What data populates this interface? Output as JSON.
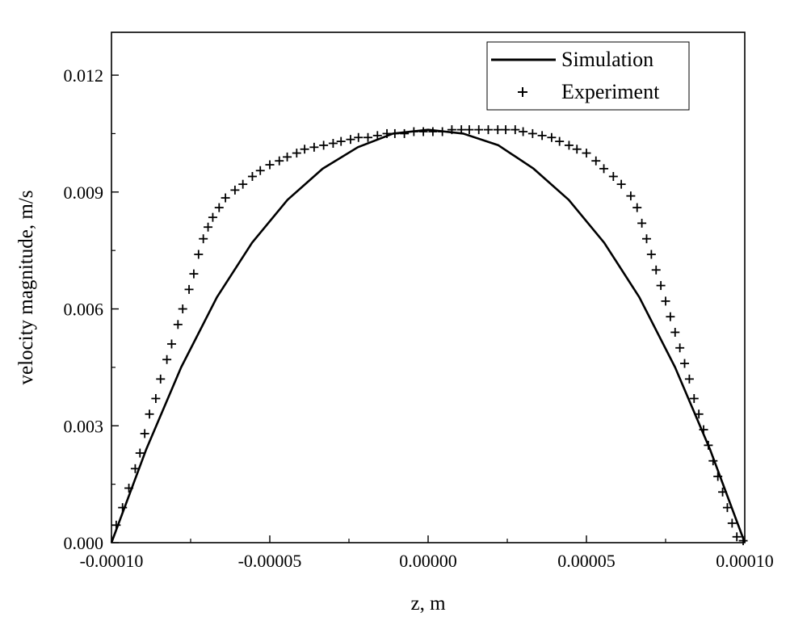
{
  "chart_data": {
    "type": "line",
    "title": "",
    "xlabel": "z, m",
    "ylabel": "velocity magnitude, m/s",
    "xlim": [
      -0.0001,
      0.0001
    ],
    "ylim": [
      0,
      0.0131
    ],
    "x_ticks": [
      -0.0001,
      -5e-05,
      0,
      5e-05,
      0.0001
    ],
    "x_tick_labels": [
      "-0.00010",
      "-0.00005",
      "0.00000",
      "0.00005",
      "0.00010"
    ],
    "y_ticks": [
      0,
      0.003,
      0.006,
      0.009,
      0.012
    ],
    "y_tick_labels": [
      "0.000",
      "0.003",
      "0.006",
      "0.009",
      "0.012"
    ],
    "grid": false,
    "legend_position": "top-right",
    "series": [
      {
        "name": "Simulation",
        "style": "solid-line",
        "color": "#000000",
        "x": [
          -0.0001,
          -8.9e-05,
          -7.8e-05,
          -6.67e-05,
          -5.56e-05,
          -4.44e-05,
          -3.33e-05,
          -2.22e-05,
          -1.11e-05,
          0,
          1.11e-05,
          2.22e-05,
          3.33e-05,
          4.44e-05,
          5.56e-05,
          6.67e-05,
          7.8e-05,
          8.9e-05,
          0.0001
        ],
        "y": [
          0,
          0.0024,
          0.0045,
          0.0063,
          0.0077,
          0.0088,
          0.0096,
          0.01015,
          0.0105,
          0.0106,
          0.0105,
          0.0102,
          0.0096,
          0.0088,
          0.0077,
          0.0063,
          0.0045,
          0.0024,
          0
        ]
      },
      {
        "name": "Experiment",
        "style": "plus-markers",
        "color": "#000000",
        "x": [
          -9.85e-05,
          -9.65e-05,
          -9.45e-05,
          -9.25e-05,
          -9.1e-05,
          -8.95e-05,
          -8.8e-05,
          -8.6e-05,
          -8.45e-05,
          -8.25e-05,
          -8.1e-05,
          -7.9e-05,
          -7.75e-05,
          -7.55e-05,
          -7.4e-05,
          -7.25e-05,
          -7.1e-05,
          -6.95e-05,
          -6.8e-05,
          -6.6e-05,
          -6.4e-05,
          -6.1e-05,
          -5.85e-05,
          -5.55e-05,
          -5.3e-05,
          -5e-05,
          -4.7e-05,
          -4.45e-05,
          -4.15e-05,
          -3.9e-05,
          -3.6e-05,
          -3.3e-05,
          -3e-05,
          -2.75e-05,
          -2.45e-05,
          -2.2e-05,
          -1.9e-05,
          -1.6e-05,
          -1.3e-05,
          -1.05e-05,
          -7.5e-06,
          -4.5e-06,
          -1.5e-06,
          1.5e-06,
          4.5e-06,
          7.5e-06,
          1.05e-05,
          1.3e-05,
          1.6e-05,
          1.9e-05,
          2.2e-05,
          2.45e-05,
          2.75e-05,
          3e-05,
          3.3e-05,
          3.6e-05,
          3.9e-05,
          4.15e-05,
          4.45e-05,
          4.7e-05,
          5e-05,
          5.3e-05,
          5.55e-05,
          5.85e-05,
          6.1e-05,
          6.4e-05,
          6.6e-05,
          6.75e-05,
          6.9e-05,
          7.05e-05,
          7.2e-05,
          7.35e-05,
          7.5e-05,
          7.65e-05,
          7.8e-05,
          7.95e-05,
          8.1e-05,
          8.25e-05,
          8.4e-05,
          8.55e-05,
          8.7e-05,
          8.85e-05,
          9e-05,
          9.15e-05,
          9.3e-05,
          9.45e-05,
          9.6e-05,
          9.75e-05,
          9.95e-05
        ],
        "y": [
          0.00045,
          0.0009,
          0.0014,
          0.0019,
          0.0023,
          0.0028,
          0.0033,
          0.0037,
          0.0042,
          0.0047,
          0.0051,
          0.0056,
          0.006,
          0.0065,
          0.0069,
          0.0074,
          0.0078,
          0.0081,
          0.00835,
          0.0086,
          0.00885,
          0.00905,
          0.0092,
          0.0094,
          0.00955,
          0.0097,
          0.0098,
          0.0099,
          0.01,
          0.0101,
          0.01015,
          0.0102,
          0.01025,
          0.0103,
          0.01035,
          0.0104,
          0.0104,
          0.01045,
          0.0105,
          0.0105,
          0.0105,
          0.01055,
          0.01055,
          0.01055,
          0.01055,
          0.0106,
          0.0106,
          0.0106,
          0.0106,
          0.0106,
          0.0106,
          0.0106,
          0.0106,
          0.01055,
          0.0105,
          0.01045,
          0.0104,
          0.0103,
          0.0102,
          0.0101,
          0.01,
          0.0098,
          0.0096,
          0.0094,
          0.0092,
          0.0089,
          0.0086,
          0.0082,
          0.0078,
          0.0074,
          0.007,
          0.0066,
          0.0062,
          0.0058,
          0.0054,
          0.005,
          0.0046,
          0.0042,
          0.0037,
          0.0033,
          0.0029,
          0.0025,
          0.0021,
          0.0017,
          0.0013,
          0.0009,
          0.0005,
          0.00015,
          5e-05
        ]
      }
    ]
  }
}
